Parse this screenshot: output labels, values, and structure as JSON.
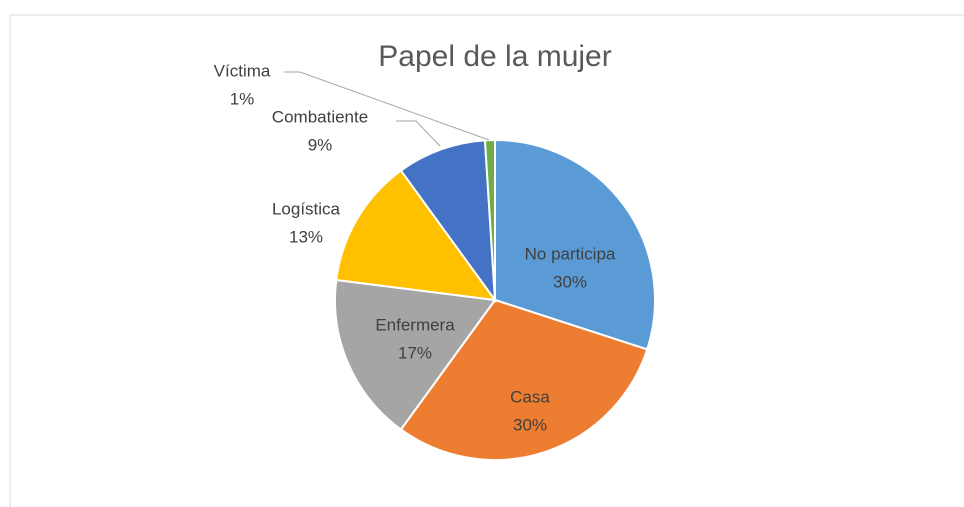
{
  "chart_data": {
    "type": "pie",
    "title": "Papel de la mujer",
    "categories": [
      "No participa",
      "Casa",
      "Enfermera",
      "Logística",
      "Combatiente",
      "Víctima"
    ],
    "values": [
      30,
      30,
      17,
      13,
      9,
      1
    ],
    "value_labels": [
      "30%",
      "30%",
      "17%",
      "13%",
      "9%",
      "1%"
    ],
    "colors": [
      "#5b9bd5",
      "#ed7d31",
      "#a5a5a5",
      "#ffc000",
      "#4472c4",
      "#70ad47"
    ]
  }
}
